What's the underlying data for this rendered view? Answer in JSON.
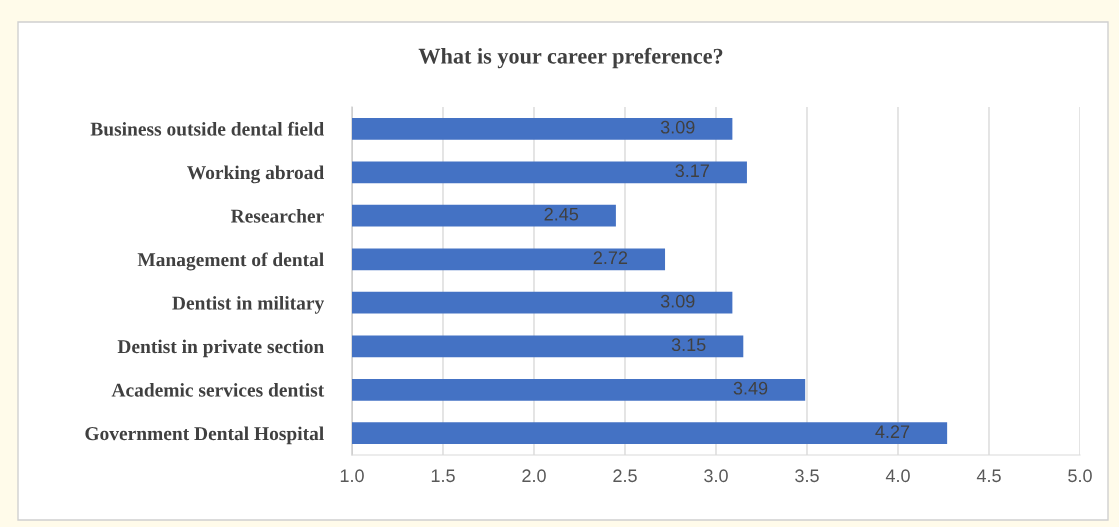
{
  "chart_data": {
    "type": "bar",
    "orientation": "horizontal",
    "title": "What is your career preference?",
    "categories": [
      "Business outside dental field",
      "Working abroad",
      "Researcher",
      "Management of dental",
      "Dentist in military",
      "Dentist in private section",
      "Academic services dentist",
      "Government Dental Hospital"
    ],
    "values": [
      3.09,
      3.17,
      2.45,
      2.72,
      3.09,
      3.15,
      3.49,
      4.27
    ],
    "color": "#4472c4",
    "xlim": [
      1,
      5
    ],
    "xticks": [
      {
        "value": 1,
        "label": "1.0"
      },
      {
        "value": 1.5,
        "label": "1.5"
      },
      {
        "value": 2,
        "label": "2.0"
      },
      {
        "value": 2.5,
        "label": "2.5"
      },
      {
        "value": 3,
        "label": "3.0"
      },
      {
        "value": 3.5,
        "label": "3.5"
      },
      {
        "value": 4,
        "label": "4.0"
      },
      {
        "value": 4.5,
        "label": "4.5"
      },
      {
        "value": 5,
        "label": "5.0"
      }
    ],
    "grid": "x",
    "data_labels": true
  }
}
